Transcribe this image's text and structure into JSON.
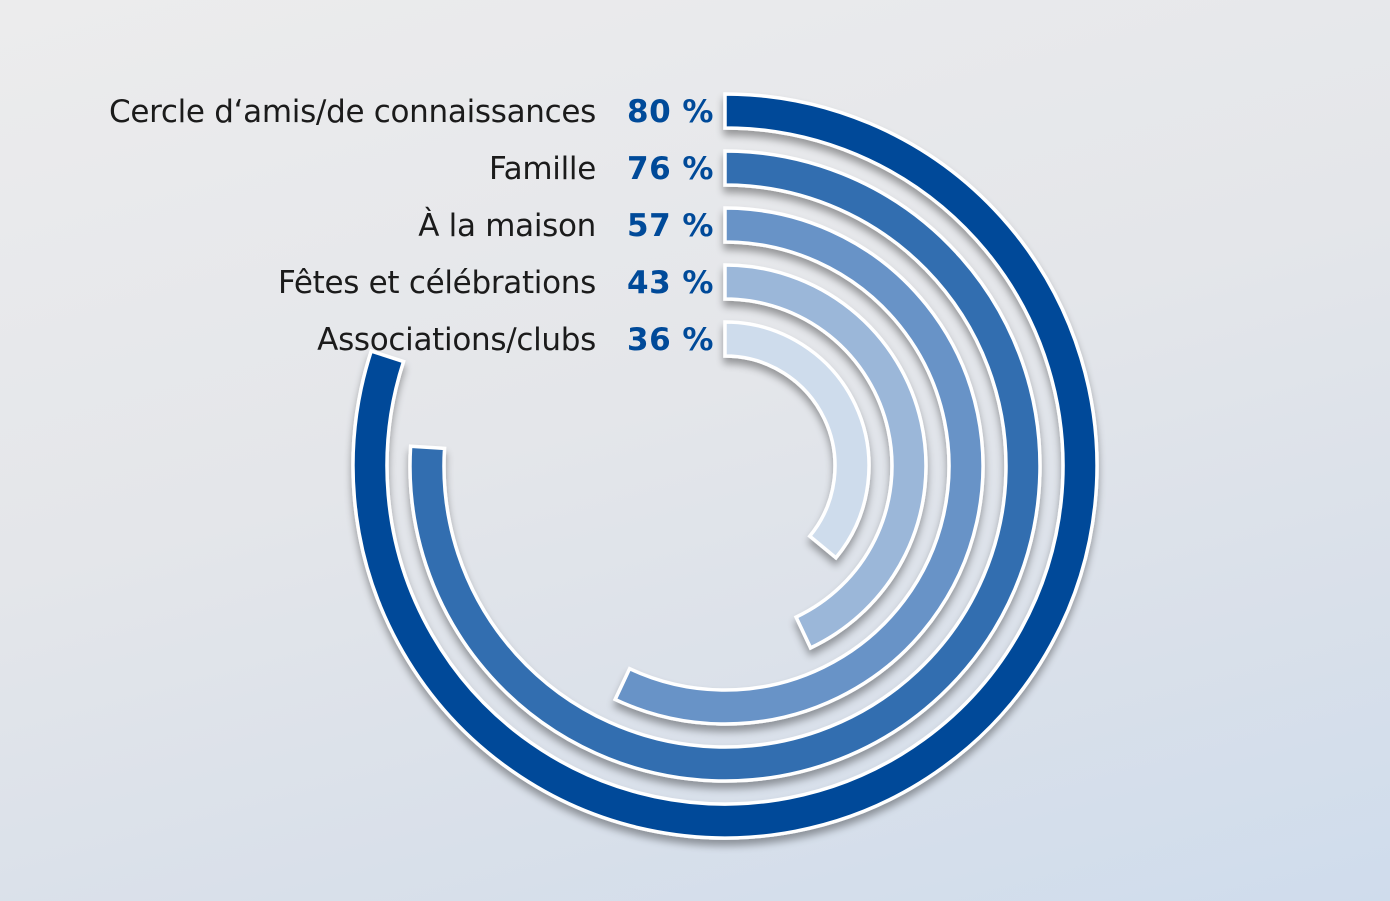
{
  "chart_data": {
    "type": "radial-bar",
    "categories": [
      "Cercle d‘amis/de connaissances",
      "Famille",
      "À la maison",
      "Fêtes et célébrations",
      "Associations/clubs"
    ],
    "values": [
      80,
      76,
      57,
      43,
      36
    ],
    "value_labels": [
      "80 %",
      "76 %",
      "57 %",
      "43 %",
      "36 %"
    ],
    "unit": "%",
    "max": 100,
    "title": "",
    "xlabel": "",
    "ylabel": "",
    "grid": false,
    "legend": "none",
    "colors": [
      "#004a99",
      "#306eb0",
      "#6893c7",
      "#9bb7d9",
      "#cedcec"
    ],
    "value_label_color": "#004a99"
  }
}
